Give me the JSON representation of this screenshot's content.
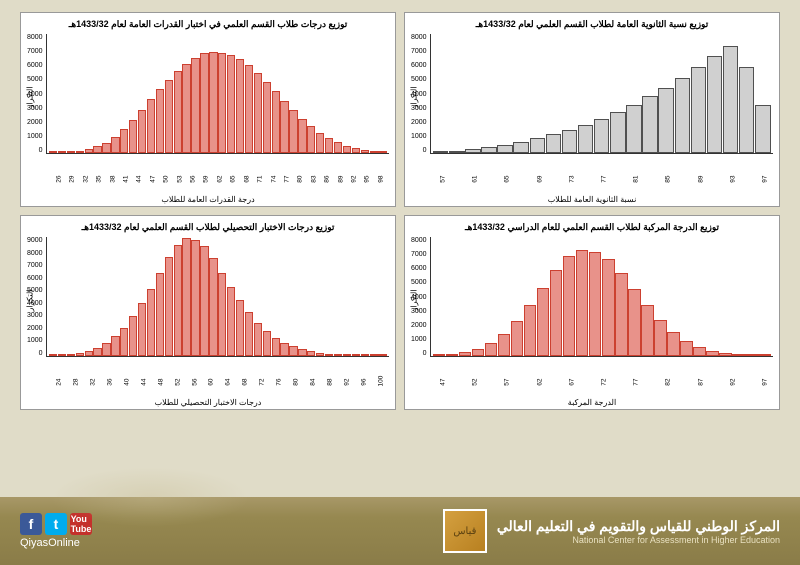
{
  "charts": [
    {
      "title": "توزيع درجات طلاب القسم العلمي في اختبار القدرات العامة لعام 1433/32هـ",
      "ylabel": "التكرار",
      "xlabel": "درجة القدرات العامة للطلاب",
      "ymax": 8000,
      "ystep": 1000,
      "xmin": 26,
      "xmax": 100,
      "xstep": 3,
      "bar_color": "#e8928a",
      "bar_border": "#cc4030",
      "values": [
        20,
        40,
        80,
        150,
        280,
        450,
        700,
        1100,
        1600,
        2200,
        2900,
        3600,
        4300,
        4900,
        5500,
        6000,
        6400,
        6700,
        6800,
        6750,
        6600,
        6300,
        5900,
        5400,
        4800,
        4200,
        3500,
        2900,
        2300,
        1800,
        1350,
        1000,
        720,
        500,
        340,
        230,
        150,
        100
      ]
    },
    {
      "title": "توزيع نسبة الثانوية العامة لطلاب القسم العلمي لعام 1433/32هـ",
      "ylabel": "التكرار",
      "xlabel": "نسبة الثانوية العامة للطلاب",
      "ymax": 8000,
      "ystep": 1000,
      "xmin": 57,
      "xmax": 97,
      "xstep": 4,
      "bar_color": "#d0d0d0",
      "bar_border": "#505050",
      "values": [
        80,
        150,
        250,
        380,
        550,
        750,
        980,
        1250,
        1550,
        1900,
        2300,
        2750,
        3250,
        3800,
        4400,
        5050,
        5750,
        6500,
        7200,
        5800,
        3200
      ]
    },
    {
      "title": "توزيع درجات الاختبار التحصيلي لطلاب القسم العلمي لعام 1433/32هـ",
      "ylabel": "التكرار",
      "xlabel": "درجات الاختبار التحصيلي للطلاب",
      "ymax": 9000,
      "ystep": 1000,
      "xmin": 24,
      "xmax": 100,
      "xstep": 4,
      "bar_color": "#e8928a",
      "bar_border": "#cc4030",
      "values": [
        30,
        60,
        120,
        220,
        380,
        620,
        980,
        1480,
        2150,
        3000,
        4000,
        5100,
        6300,
        7500,
        8400,
        8900,
        8800,
        8300,
        7400,
        6300,
        5200,
        4200,
        3300,
        2500,
        1900,
        1400,
        1000,
        720,
        500,
        350,
        240,
        160,
        110,
        70,
        50,
        30,
        20,
        10
      ]
    },
    {
      "title": "توزيع الدرجة المركبة لطلاب القسم العلمي للعام الدراسي 1433/32هـ",
      "ylabel": "التكرار",
      "xlabel": "الدرجة المركبة",
      "ymax": 8000,
      "ystep": 1000,
      "xmin": 47,
      "xmax": 97,
      "xstep": 5,
      "bar_color": "#e8928a",
      "bar_border": "#cc4030",
      "values": [
        50,
        120,
        260,
        500,
        900,
        1500,
        2350,
        3400,
        4600,
        5800,
        6700,
        7100,
        7000,
        6500,
        5600,
        4500,
        3400,
        2400,
        1600,
        1000,
        600,
        350,
        200,
        110,
        60,
        30
      ]
    }
  ],
  "footer": {
    "handle": "QiyasOnline",
    "org_ar": "المركز الوطني للقياس والتقويم في التعليم العالي",
    "org_en": "National Center for Assessment in Higher Education",
    "logo_glyph": "قياس"
  },
  "colors": {
    "page_bg": "#e0dcc8",
    "chart_bg": "#ffffff",
    "chart_border": "#999999",
    "axis": "#333333",
    "footer_grad_top": "#a89868",
    "footer_grad_bot": "#8a7c48"
  }
}
